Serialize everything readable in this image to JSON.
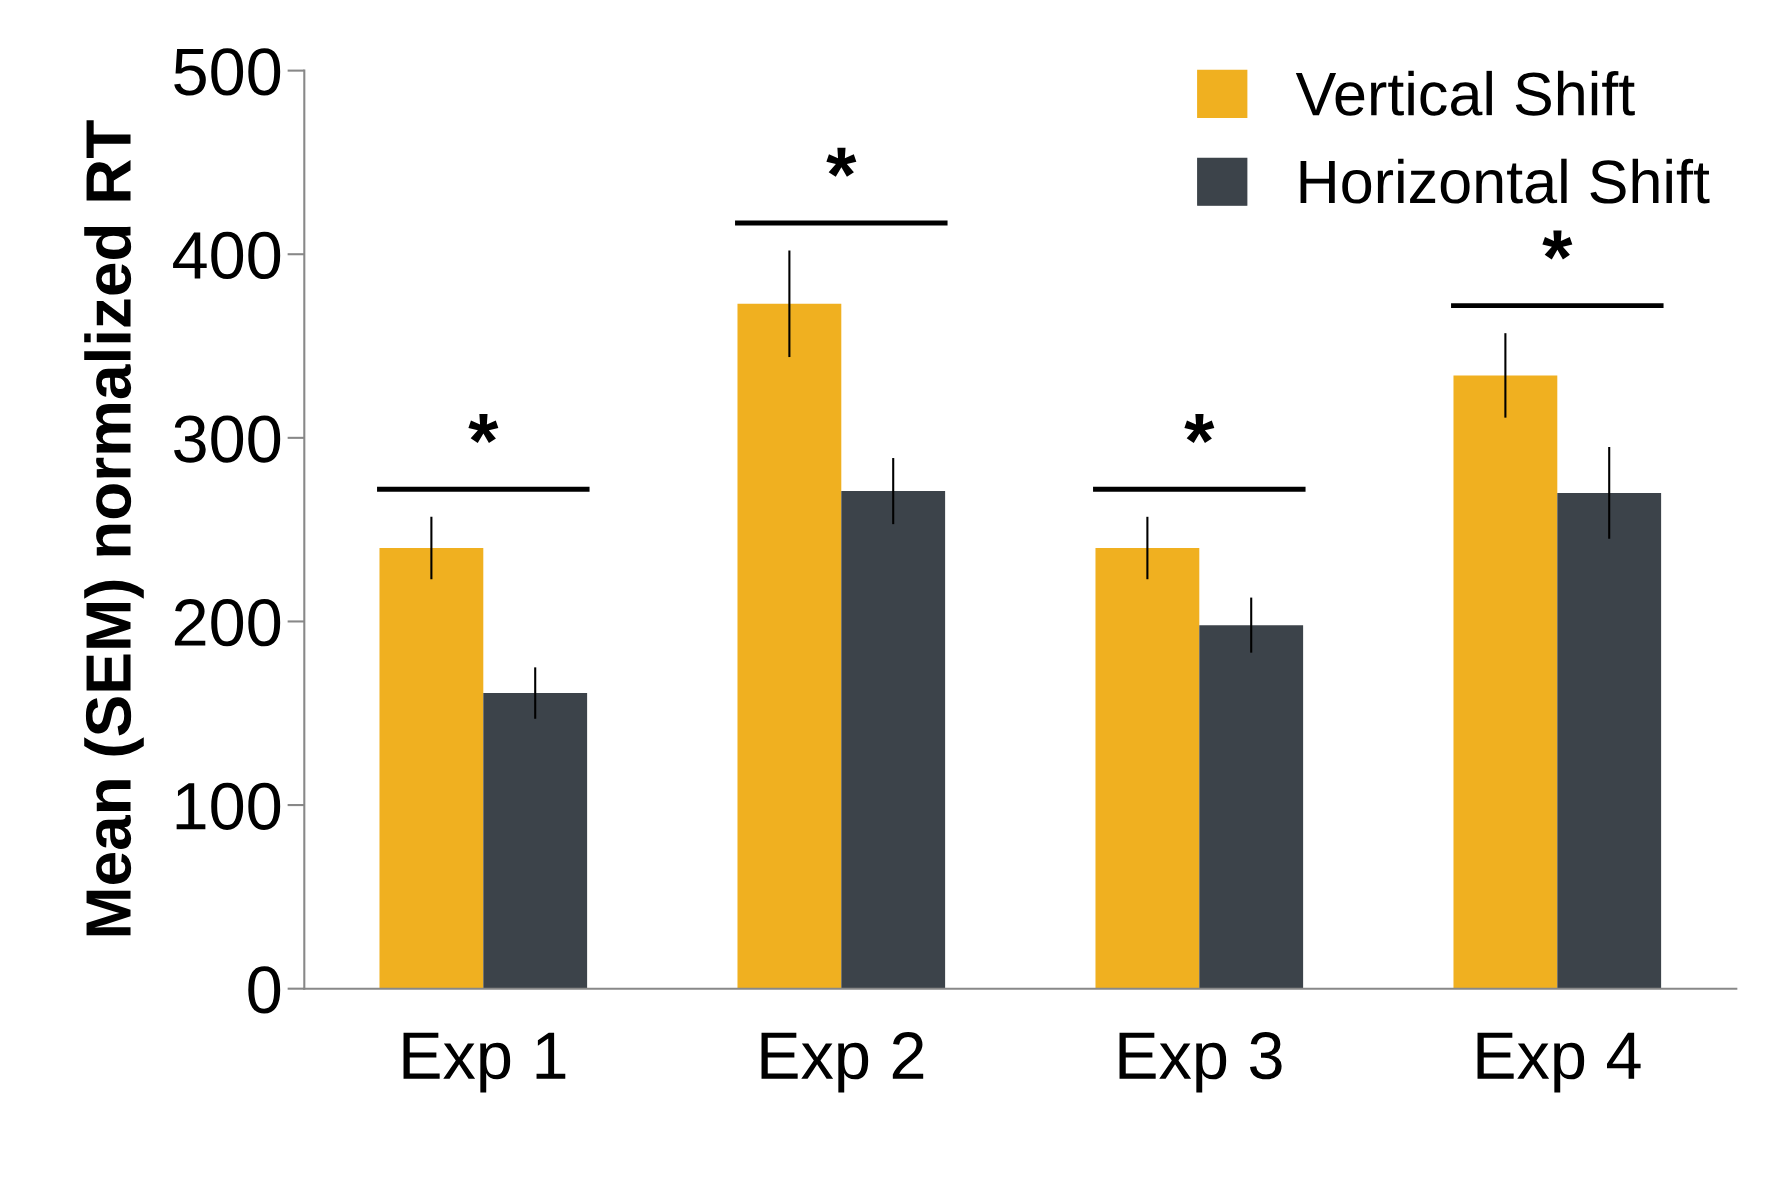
{
  "chart_data": {
    "type": "bar",
    "ylabel": "Mean (SEM) normalized RT",
    "categories": [
      "Exp 1",
      "Exp 2",
      "Exp 3",
      "Exp 4"
    ],
    "series": [
      {
        "name": "Vertical Shift",
        "color": "#f0b020",
        "values": [
          240,
          373,
          240,
          334
        ],
        "errors": [
          17,
          29,
          17,
          23
        ]
      },
      {
        "name": "Horizontal Shift",
        "color": "#3c434a",
        "values": [
          161,
          271,
          198,
          270
        ],
        "errors": [
          14,
          18,
          15,
          25
        ]
      }
    ],
    "ylim": [
      0,
      500
    ],
    "yticks": [
      0,
      100,
      200,
      300,
      400,
      500
    ],
    "grid": false,
    "legend": "top right",
    "annotations": [
      "*",
      "*",
      "*",
      "*"
    ]
  }
}
